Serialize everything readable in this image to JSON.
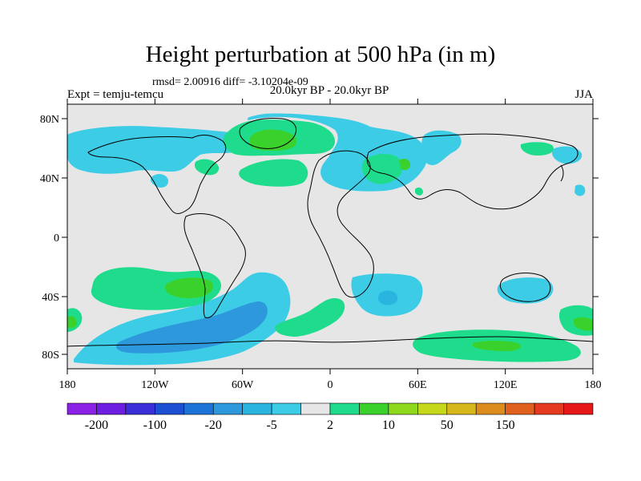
{
  "title": "Height perturbation at 500 hPa (in m)",
  "stats": "rmsd= 2.00916 diff= -3.10204e-09",
  "expt": "Expt = temju-temcu",
  "period": "20.0kyr BP - 20.0kyr BP",
  "season": "JJA",
  "axes": {
    "y_ticks": [
      "80N",
      "40N",
      "0",
      "40S",
      "80S"
    ],
    "x_ticks": [
      "180",
      "120W",
      "60W",
      "0",
      "60E",
      "120E",
      "180"
    ]
  },
  "colorbar": {
    "colors": [
      "#8c21e6",
      "#6e1ee0",
      "#3a2fd6",
      "#1d4fd2",
      "#1c74d8",
      "#2e98dc",
      "#2ab4e0",
      "#3ccce6",
      "#e6e6e6",
      "#1edc8c",
      "#3bd12c",
      "#8ed81e",
      "#c6d81c",
      "#d6b81c",
      "#dc8c1c",
      "#e0601e",
      "#e43a1e",
      "#e61818"
    ],
    "labels": [
      "-200",
      "-100",
      "-20",
      "-5",
      "2",
      "10",
      "50",
      "150"
    ]
  },
  "palette": {
    "ocean_neutral": "#e6e6e6",
    "light_blue": "#3ccce6",
    "mid_blue": "#2ab4e0",
    "blue": "#2e98dc",
    "green": "#1edc8c",
    "bright_green": "#3bd12c"
  }
}
